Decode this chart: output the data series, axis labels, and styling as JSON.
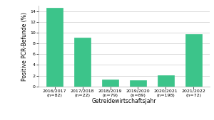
{
  "categories": [
    "2016/2017\n(n=82)",
    "2017/2018\n(n=22)",
    "2018/2019\n(n=79)",
    "2019/2020\n(n=89)",
    "2020/2021\n(n=198)",
    "2021/2022\n(n=72)"
  ],
  "values": [
    14.63,
    9.09,
    1.27,
    1.12,
    2.02,
    9.72
  ],
  "bar_color": "#3CC48A",
  "bar_edge_color": "#3CC48A",
  "ylabel": "Positive PCR-Befunde (%)",
  "xlabel": "Getreidewirtschaftsjahr",
  "ylim": [
    0,
    15
  ],
  "yticks": [
    0,
    2,
    4,
    6,
    8,
    10,
    12,
    14
  ],
  "background_color": "#ffffff",
  "grid_color": "#cccccc",
  "tick_fontsize": 4.5,
  "label_fontsize": 5.5
}
